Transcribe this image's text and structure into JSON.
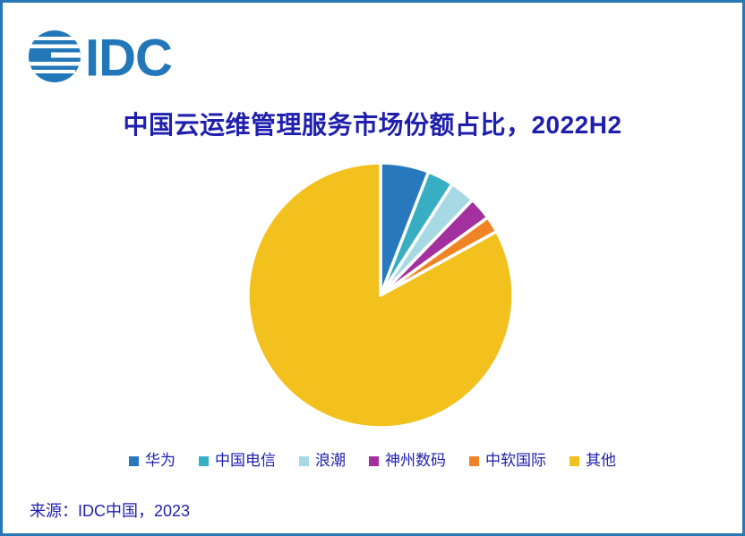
{
  "page": {
    "background": "#FFFFFF",
    "border_color": "#2878B5"
  },
  "logo": {
    "text": "IDC",
    "color": "#2277B8"
  },
  "header": {
    "title": "中国云运维管理服务市场份额占比，2022H2",
    "title_color": "#1F1FAE"
  },
  "footer": {
    "source": "来源：IDC中国，2023"
  },
  "chart_data": {
    "type": "pie",
    "title": "中国云运维管理服务市场份额占比，2022H2",
    "unit": "percent_market_share",
    "start_angle_deg": 0,
    "direction": "clockwise",
    "legend_position": "bottom",
    "data_labels_shown": false,
    "slice_gap_color": "#FFFFFF",
    "categories": [
      "华为",
      "中国电信",
      "浪潮",
      "神州数码",
      "中软国际",
      "其他"
    ],
    "series": [
      {
        "name": "华为",
        "value": 5.9,
        "color": "#2878BE"
      },
      {
        "name": "中国电信",
        "value": 3.2,
        "color": "#38AEC2"
      },
      {
        "name": "浪潮",
        "value": 3.1,
        "color": "#A6D9E4"
      },
      {
        "name": "神州数码",
        "value": 2.8,
        "color": "#A2309E"
      },
      {
        "name": "中软国际",
        "value": 2.0,
        "color": "#F08424"
      },
      {
        "name": "其他",
        "value": 83.0,
        "color": "#F3C11D"
      }
    ]
  }
}
